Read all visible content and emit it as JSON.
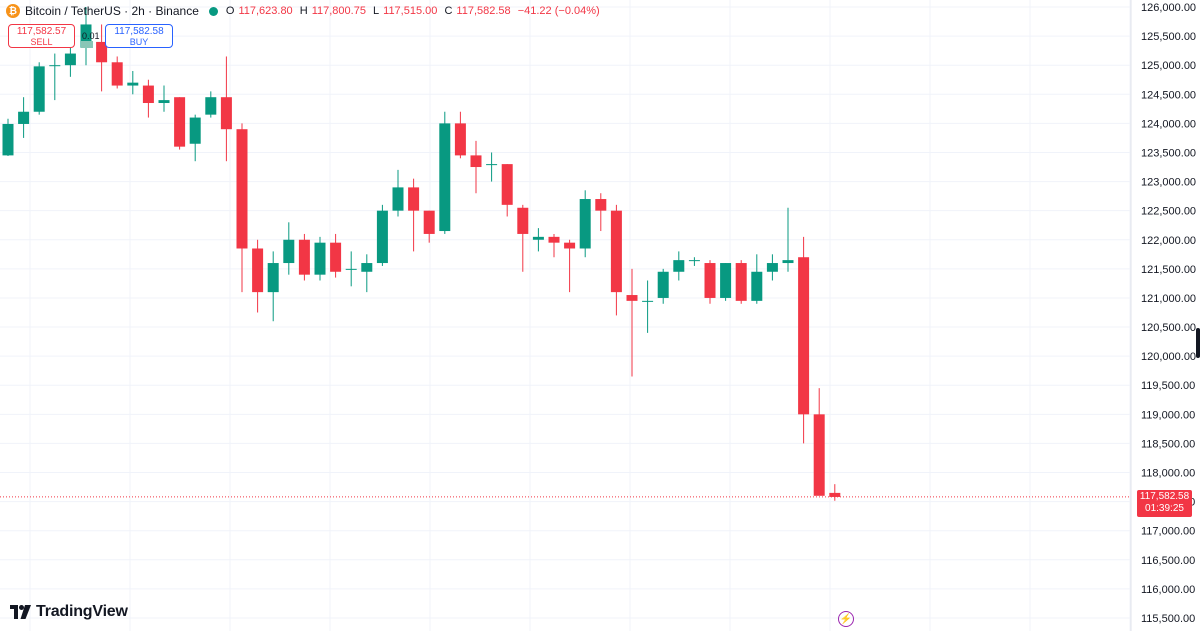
{
  "legend": {
    "symbol_icon": "bitcoin-icon",
    "title": "Bitcoin / TetherUS · 2h · Binance",
    "open_label": "O",
    "open": "117,623.80",
    "high_label": "H",
    "high": "117,800.75",
    "low_label": "L",
    "low": "117,515.00",
    "close_label": "C",
    "close": "117,582.58",
    "change": "−41.22 (−0.04%)"
  },
  "trade": {
    "sell_price": "117,582.57",
    "sell_label": "SELL",
    "buy_price": "117,582.58",
    "buy_label": "BUY",
    "spread": "0.01"
  },
  "last_price": {
    "price": "117,582.58",
    "countdown": "01:39:25"
  },
  "brand": {
    "name": "TradingView"
  },
  "colors": {
    "up": "#089981",
    "down": "#f23645",
    "grid": "#f0f3fa",
    "axis_text": "#131722"
  },
  "chart_data": {
    "type": "candlestick",
    "ylim": [
      115500,
      126000
    ],
    "y_ticks": [
      "126,000.00",
      "125,500.00",
      "125,000.00",
      "124,500.00",
      "124,000.00",
      "123,500.00",
      "123,000.00",
      "122,500.00",
      "122,000.00",
      "121,500.00",
      "121,000.00",
      "120,500.00",
      "120,000.00",
      "119,500.00",
      "119,000.00",
      "118,500.00",
      "118,000.00",
      "117,500.00",
      "117,000.00",
      "116,500.00",
      "116,000.00",
      "115,500.00"
    ],
    "y_tick_values": [
      126000,
      125500,
      125000,
      124500,
      124000,
      123500,
      123000,
      122500,
      122000,
      121500,
      121000,
      120500,
      120000,
      119500,
      119000,
      118500,
      118000,
      117500,
      117000,
      116500,
      116000,
      115500
    ],
    "last_price": 117582.58,
    "candles": [
      {
        "o": 123450,
        "h": 124080,
        "l": 123440,
        "c": 123990
      },
      {
        "o": 123990,
        "h": 124450,
        "l": 123750,
        "c": 124200
      },
      {
        "o": 124200,
        "h": 125050,
        "l": 124150,
        "c": 124980
      },
      {
        "o": 125000,
        "h": 125200,
        "l": 124400,
        "c": 125000
      },
      {
        "o": 125000,
        "h": 125600,
        "l": 124800,
        "c": 125200
      },
      {
        "o": 125300,
        "h": 126000,
        "l": 125000,
        "c": 125700
      },
      {
        "o": 125400,
        "h": 125700,
        "l": 124550,
        "c": 125050
      },
      {
        "o": 125050,
        "h": 125150,
        "l": 124600,
        "c": 124650
      },
      {
        "o": 124650,
        "h": 124900,
        "l": 124500,
        "c": 124700
      },
      {
        "o": 124650,
        "h": 124750,
        "l": 124100,
        "c": 124350
      },
      {
        "o": 124350,
        "h": 124650,
        "l": 124200,
        "c": 124400
      },
      {
        "o": 124450,
        "h": 124450,
        "l": 123550,
        "c": 123600
      },
      {
        "o": 123650,
        "h": 124150,
        "l": 123350,
        "c": 124100
      },
      {
        "o": 124150,
        "h": 124550,
        "l": 124100,
        "c": 124450
      },
      {
        "o": 124450,
        "h": 125150,
        "l": 123350,
        "c": 123900
      },
      {
        "o": 123900,
        "h": 124000,
        "l": 121100,
        "c": 121850
      },
      {
        "o": 121850,
        "h": 122000,
        "l": 120750,
        "c": 121100
      },
      {
        "o": 121100,
        "h": 121800,
        "l": 120600,
        "c": 121600
      },
      {
        "o": 121600,
        "h": 122300,
        "l": 121400,
        "c": 122000
      },
      {
        "o": 122000,
        "h": 122100,
        "l": 121300,
        "c": 121400
      },
      {
        "o": 121400,
        "h": 122050,
        "l": 121300,
        "c": 121950
      },
      {
        "o": 121950,
        "h": 122100,
        "l": 121350,
        "c": 121450
      },
      {
        "o": 121500,
        "h": 121800,
        "l": 121200,
        "c": 121500
      },
      {
        "o": 121450,
        "h": 121750,
        "l": 121100,
        "c": 121600
      },
      {
        "o": 121600,
        "h": 122600,
        "l": 121550,
        "c": 122500
      },
      {
        "o": 122500,
        "h": 123200,
        "l": 122400,
        "c": 122900
      },
      {
        "o": 122900,
        "h": 123050,
        "l": 121800,
        "c": 122500
      },
      {
        "o": 122500,
        "h": 122500,
        "l": 121950,
        "c": 122100
      },
      {
        "o": 122150,
        "h": 124200,
        "l": 122100,
        "c": 124000
      },
      {
        "o": 124000,
        "h": 124200,
        "l": 123400,
        "c": 123450
      },
      {
        "o": 123450,
        "h": 123700,
        "l": 122800,
        "c": 123250
      },
      {
        "o": 123300,
        "h": 123500,
        "l": 123000,
        "c": 123300
      },
      {
        "o": 123300,
        "h": 123300,
        "l": 122400,
        "c": 122600
      },
      {
        "o": 122550,
        "h": 122600,
        "l": 121450,
        "c": 122100
      },
      {
        "o": 122000,
        "h": 122200,
        "l": 121800,
        "c": 122050
      },
      {
        "o": 122050,
        "h": 122100,
        "l": 121700,
        "c": 121950
      },
      {
        "o": 121950,
        "h": 122000,
        "l": 121100,
        "c": 121850
      },
      {
        "o": 121850,
        "h": 122850,
        "l": 121700,
        "c": 122700
      },
      {
        "o": 122700,
        "h": 122800,
        "l": 122150,
        "c": 122500
      },
      {
        "o": 122500,
        "h": 122600,
        "l": 120700,
        "c": 121100
      },
      {
        "o": 121050,
        "h": 121500,
        "l": 119650,
        "c": 120950
      },
      {
        "o": 120950,
        "h": 121300,
        "l": 120400,
        "c": 120950
      },
      {
        "o": 121000,
        "h": 121500,
        "l": 120900,
        "c": 121450
      },
      {
        "o": 121450,
        "h": 121800,
        "l": 121300,
        "c": 121650
      },
      {
        "o": 121650,
        "h": 121700,
        "l": 121550,
        "c": 121650
      },
      {
        "o": 121600,
        "h": 121650,
        "l": 120900,
        "c": 121000
      },
      {
        "o": 121000,
        "h": 121600,
        "l": 120950,
        "c": 121600
      },
      {
        "o": 121600,
        "h": 121650,
        "l": 120900,
        "c": 120950
      },
      {
        "o": 120950,
        "h": 121750,
        "l": 120900,
        "c": 121450
      },
      {
        "o": 121450,
        "h": 121750,
        "l": 121300,
        "c": 121600
      },
      {
        "o": 121600,
        "h": 122550,
        "l": 121450,
        "c": 121650
      },
      {
        "o": 121700,
        "h": 122050,
        "l": 118500,
        "c": 119000
      },
      {
        "o": 119000,
        "h": 119450,
        "l": 117650,
        "c": 117600
      },
      {
        "o": 117650,
        "h": 117800,
        "l": 117515,
        "c": 117580
      }
    ]
  }
}
